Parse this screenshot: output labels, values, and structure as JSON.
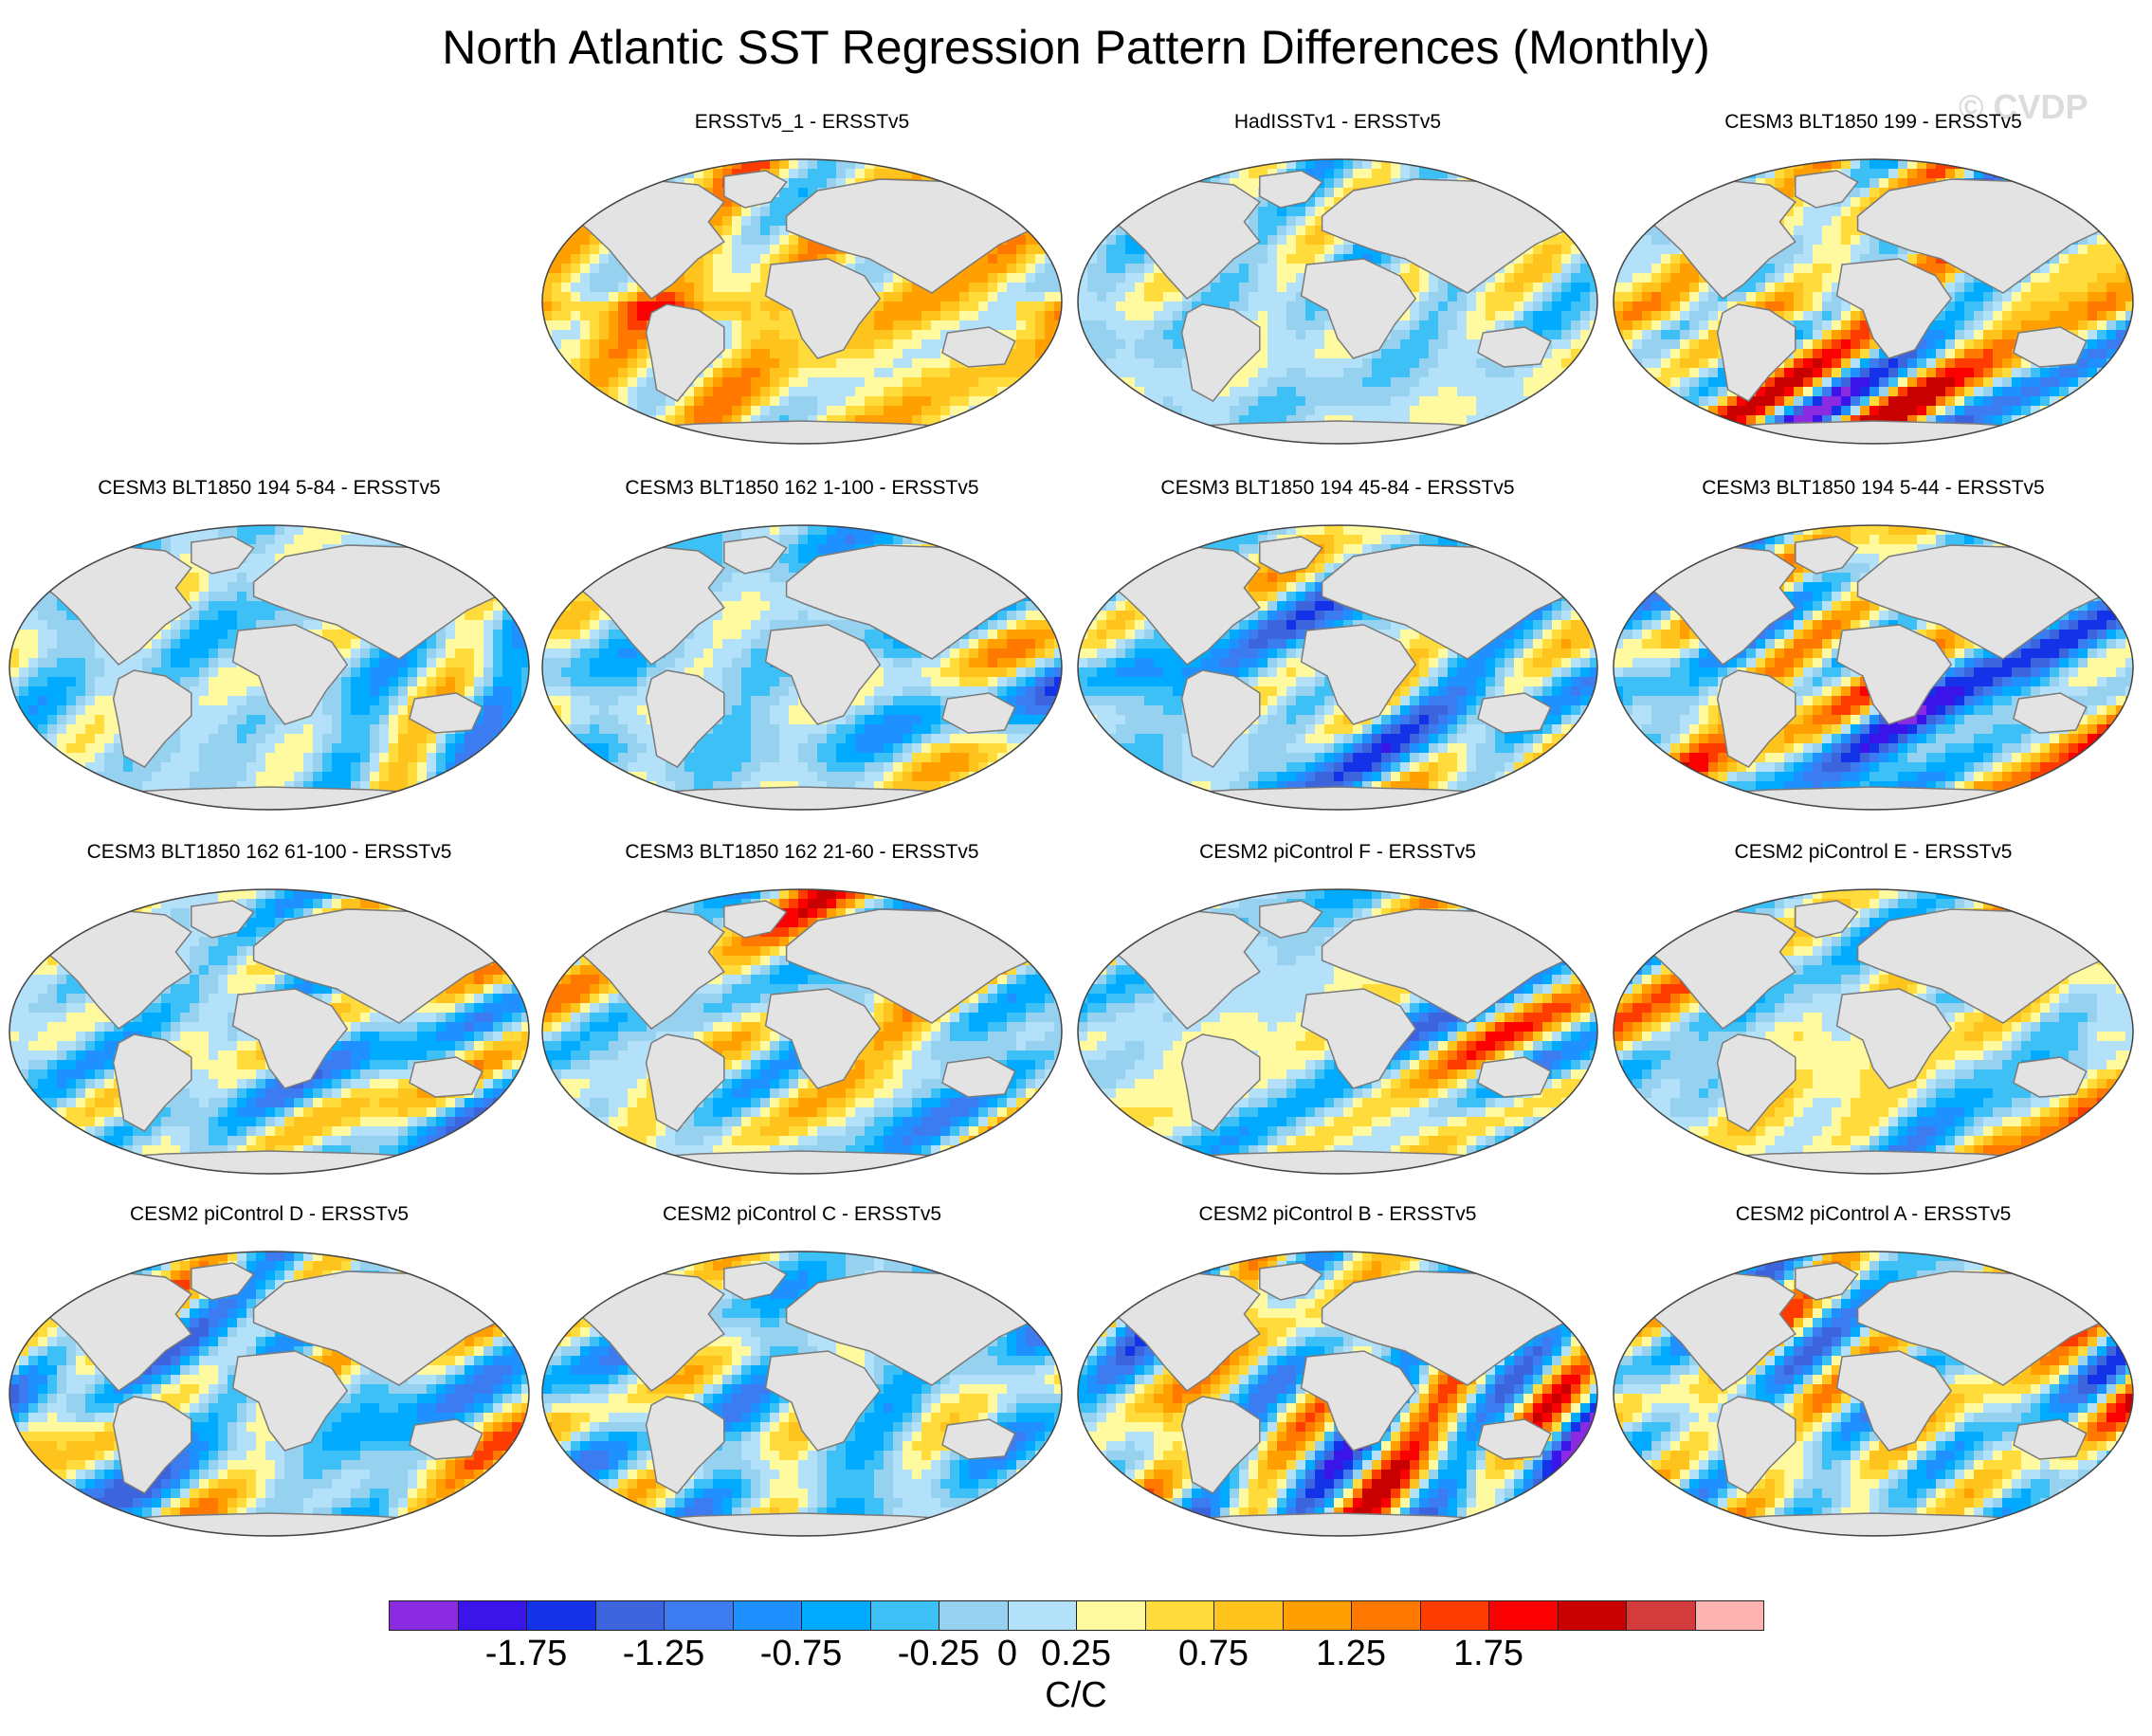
{
  "title": "North Atlantic SST Regression Pattern Differences (Monthly)",
  "watermark": "© CVDP",
  "panels": [
    {
      "label": "ERSSTv5_1 - ERSSTv5",
      "seed": 11,
      "bias": 0.55,
      "amp": 0.9
    },
    {
      "label": "HadISSTv1 - ERSSTv5",
      "seed": 23,
      "bias": 0.05,
      "amp": 0.8
    },
    {
      "label": "CESM3 BLT1850 199 - ERSSTv5",
      "seed": 37,
      "bias": 0.35,
      "amp": 1.7
    },
    {
      "label": "CESM3 BLT1850 194 5-84 - ERSSTv5",
      "seed": 41,
      "bias": 0.0,
      "amp": 1.3
    },
    {
      "label": "CESM3 BLT1850 162 1-100 - ERSSTv5",
      "seed": 53,
      "bias": -0.05,
      "amp": 1.3
    },
    {
      "label": "CESM3 BLT1850 194 45-84 - ERSSTv5",
      "seed": 67,
      "bias": -0.15,
      "amp": 1.2
    },
    {
      "label": "CESM3 BLT1850 194 5-44 - ERSSTv5",
      "seed": 71,
      "bias": 0.05,
      "amp": 1.5
    },
    {
      "label": "CESM3 BLT1850 162 61-100 - ERSSTv5",
      "seed": 83,
      "bias": 0.0,
      "amp": 1.4
    },
    {
      "label": "CESM3 BLT1850 162 21-60 - ERSSTv5",
      "seed": 97,
      "bias": 0.15,
      "amp": 1.4
    },
    {
      "label": "CESM2 piControl F - ERSSTv5",
      "seed": 101,
      "bias": 0.1,
      "amp": 1.4
    },
    {
      "label": "CESM2 piControl E - ERSSTv5",
      "seed": 113,
      "bias": 0.2,
      "amp": 1.6
    },
    {
      "label": "CESM2 piControl D - ERSSTv5",
      "seed": 127,
      "bias": -0.05,
      "amp": 1.3
    },
    {
      "label": "CESM2 piControl C - ERSSTv5",
      "seed": 131,
      "bias": -0.05,
      "amp": 1.1
    },
    {
      "label": "CESM2 piControl B - ERSSTv5",
      "seed": 149,
      "bias": 0.1,
      "amp": 1.5
    },
    {
      "label": "CESM2 piControl A - ERSSTv5",
      "seed": 157,
      "bias": 0.1,
      "amp": 1.6
    }
  ],
  "colorbar": {
    "unit": "C/C",
    "levels": [
      -2.0,
      -1.75,
      -1.5,
      -1.25,
      -1.0,
      -0.75,
      -0.5,
      -0.25,
      0,
      0.25,
      0.5,
      0.75,
      1.0,
      1.25,
      1.5,
      1.75,
      2.0
    ],
    "tick_labels": [
      "-1.75",
      "-1.25",
      "-0.75",
      "-0.25",
      "0",
      "0.25",
      "0.75",
      "1.25",
      "1.75"
    ],
    "tick_values": [
      -1.75,
      -1.25,
      -0.75,
      -0.25,
      0,
      0.25,
      0.75,
      1.25,
      1.75
    ],
    "colors": [
      "#8a2be2",
      "#3a14e8",
      "#1432e8",
      "#3c64dc",
      "#3c7cf0",
      "#1e90ff",
      "#00aaff",
      "#3cc0f5",
      "#96d2f0",
      "#b4e1fa",
      "#fffaa0",
      "#ffdc3c",
      "#ffc31e",
      "#ffa000",
      "#ff7800",
      "#ff3c00",
      "#fa0000",
      "#c80000",
      "#d23c3c",
      "#ffb4b4"
    ]
  },
  "land_color": "#e3e3e3",
  "coast_color": "#7a7a7a"
}
